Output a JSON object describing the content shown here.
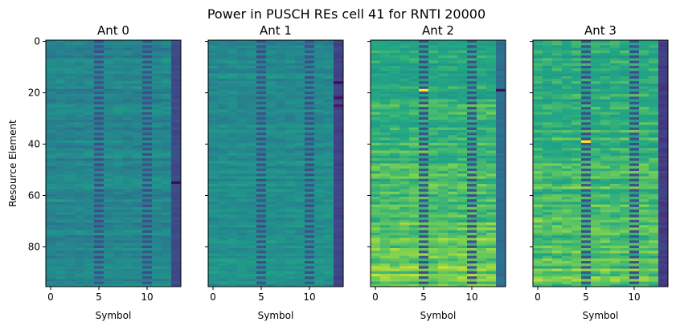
{
  "figure": {
    "suptitle": "Power in PUSCH REs cell 41 for RNTI 20000"
  },
  "chart_data": [
    {
      "type": "heatmap",
      "title": "Ant 0",
      "xlabel": "Symbol",
      "ylabel": "Resource Element",
      "x_ticks": [
        0,
        5,
        10
      ],
      "y_ticks": [
        0,
        20,
        40,
        60,
        80
      ],
      "xlim": [
        -0.5,
        13.5
      ],
      "ylim": [
        95.5,
        -0.5
      ],
      "n_symbols": 14,
      "n_res": 96,
      "base_level": 0.55,
      "level_gradient": 0.04,
      "dmrs_symbols": [
        5,
        10
      ],
      "last_symbol_level": 0.28,
      "hotspots": [
        {
          "symbol": 13,
          "re": 55,
          "level": 0.02
        }
      ],
      "colormap": "viridis"
    },
    {
      "type": "heatmap",
      "title": "Ant 1",
      "xlabel": "Symbol",
      "ylabel": "",
      "x_ticks": [
        0,
        5,
        10
      ],
      "y_ticks": [
        0,
        20,
        40,
        60,
        80
      ],
      "xlim": [
        -0.5,
        13.5
      ],
      "ylim": [
        95.5,
        -0.5
      ],
      "n_symbols": 14,
      "n_res": 96,
      "base_level": 0.58,
      "level_gradient": 0.05,
      "dmrs_symbols": [
        5,
        10
      ],
      "last_symbol_level": 0.25,
      "hotspots": [
        {
          "symbol": 13,
          "re": 16,
          "level": 0.02
        },
        {
          "symbol": 13,
          "re": 22,
          "level": 0.05
        },
        {
          "symbol": 13,
          "re": 25,
          "level": 0.08
        }
      ],
      "colormap": "viridis"
    },
    {
      "type": "heatmap",
      "title": "Ant 2",
      "xlabel": "Symbol",
      "ylabel": "",
      "x_ticks": [
        0,
        5,
        10
      ],
      "y_ticks": [
        0,
        20,
        40,
        60,
        80
      ],
      "xlim": [
        -0.5,
        13.5
      ],
      "ylim": [
        95.5,
        -0.5
      ],
      "n_symbols": 14,
      "n_res": 96,
      "base_level": 0.72,
      "level_gradient": 0.14,
      "dmrs_symbols": [
        5,
        10
      ],
      "last_symbol_level": 0.45,
      "hotspots": [
        {
          "symbol": 5,
          "re": 19,
          "level": 1.0
        },
        {
          "symbol": 13,
          "re": 19,
          "level": 0.04
        }
      ],
      "colormap": "viridis"
    },
    {
      "type": "heatmap",
      "title": "Ant 3",
      "xlabel": "Symbol",
      "ylabel": "",
      "x_ticks": [
        0,
        5,
        10
      ],
      "y_ticks": [
        0,
        20,
        40,
        60,
        80
      ],
      "xlim": [
        -0.5,
        13.5
      ],
      "ylim": [
        95.5,
        -0.5
      ],
      "n_symbols": 14,
      "n_res": 96,
      "base_level": 0.72,
      "level_gradient": 0.12,
      "dmrs_symbols": [
        5,
        10
      ],
      "last_symbol_level": 0.22,
      "hotspots": [
        {
          "symbol": 5,
          "re": 39,
          "level": 1.0
        }
      ],
      "colormap": "viridis"
    }
  ]
}
